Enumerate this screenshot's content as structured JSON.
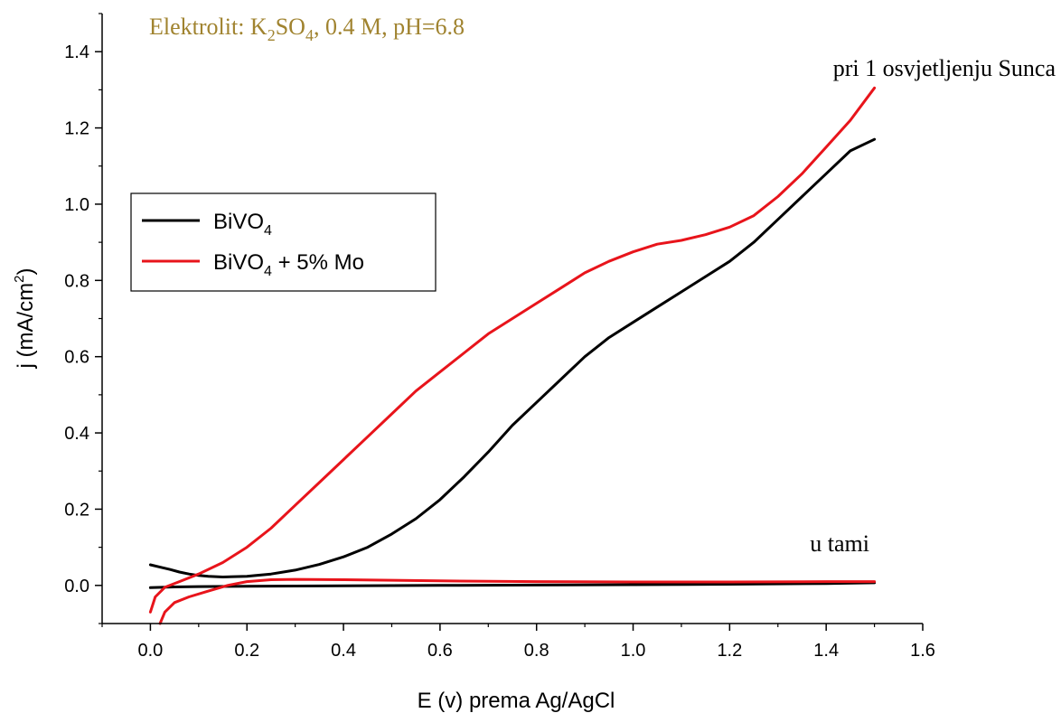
{
  "chart_data": {
    "type": "line",
    "title": "",
    "xlabel": "E (v) prema Ag/AgCl",
    "ylabel_parts": {
      "main": "j (mA/cm",
      "sup": "2",
      "close": ")"
    },
    "xlim": [
      -0.1,
      1.6
    ],
    "ylim": [
      -0.1,
      1.5
    ],
    "x_ticks": [
      0.0,
      0.2,
      0.4,
      0.6,
      0.8,
      1.0,
      1.2,
      1.4,
      1.6
    ],
    "x_tick_labels": [
      "0.0",
      "0.2",
      "0.4",
      "0.6",
      "0.8",
      "1.0",
      "1.2",
      "1.4",
      "1.6"
    ],
    "y_ticks": [
      0.0,
      0.2,
      0.4,
      0.6,
      0.8,
      1.0,
      1.2,
      1.4
    ],
    "y_tick_labels": [
      "0.0",
      "0.2",
      "0.4",
      "0.6",
      "0.8",
      "1.0",
      "1.2",
      "1.4"
    ],
    "grid": false,
    "legend_position": "upper-left",
    "annotations": {
      "electrolyte": {
        "prefix": "Elektrolit: K",
        "sub1": "2",
        "mid": "SO",
        "sub2": "4",
        "suffix": ", 0.4 M, pH=6.8"
      },
      "light": "pri 1 osvjetljenju Sunca",
      "dark": "u tami"
    },
    "series": [
      {
        "name_main": "BiVO",
        "name_sub": "4",
        "name_suffix": "",
        "color": "#000000",
        "light": {
          "x": [
            0.0,
            0.02,
            0.04,
            0.06,
            0.08,
            0.1,
            0.12,
            0.15,
            0.2,
            0.25,
            0.3,
            0.35,
            0.4,
            0.45,
            0.5,
            0.55,
            0.6,
            0.65,
            0.7,
            0.75,
            0.8,
            0.85,
            0.9,
            0.95,
            1.0,
            1.05,
            1.1,
            1.15,
            1.2,
            1.25,
            1.3,
            1.35,
            1.4,
            1.45,
            1.5
          ],
          "y": [
            0.054,
            0.048,
            0.042,
            0.035,
            0.03,
            0.026,
            0.024,
            0.022,
            0.024,
            0.03,
            0.04,
            0.055,
            0.075,
            0.1,
            0.135,
            0.175,
            0.225,
            0.285,
            0.35,
            0.42,
            0.48,
            0.54,
            0.6,
            0.65,
            0.69,
            0.73,
            0.77,
            0.81,
            0.85,
            0.9,
            0.96,
            1.02,
            1.08,
            1.14,
            1.17
          ]
        },
        "dark": {
          "x": [
            0.0,
            0.05,
            0.1,
            0.2,
            0.4,
            0.6,
            0.8,
            1.0,
            1.2,
            1.4,
            1.5
          ],
          "y": [
            -0.006,
            -0.004,
            -0.003,
            -0.002,
            -0.001,
            0.0,
            0.001,
            0.002,
            0.003,
            0.005,
            0.007
          ]
        }
      },
      {
        "name_main": "BiVO",
        "name_sub": "4",
        "name_suffix": " + 5% Mo",
        "color": "#e8141b",
        "light": {
          "x": [
            0.0,
            0.01,
            0.03,
            0.06,
            0.1,
            0.15,
            0.2,
            0.25,
            0.3,
            0.35,
            0.4,
            0.45,
            0.5,
            0.55,
            0.6,
            0.65,
            0.7,
            0.75,
            0.8,
            0.85,
            0.9,
            0.95,
            1.0,
            1.05,
            1.1,
            1.15,
            1.2,
            1.25,
            1.3,
            1.35,
            1.4,
            1.45,
            1.5
          ],
          "y": [
            -0.07,
            -0.03,
            -0.005,
            0.01,
            0.03,
            0.06,
            0.1,
            0.15,
            0.21,
            0.27,
            0.33,
            0.39,
            0.45,
            0.51,
            0.56,
            0.61,
            0.66,
            0.7,
            0.74,
            0.78,
            0.82,
            0.85,
            0.875,
            0.895,
            0.905,
            0.92,
            0.94,
            0.97,
            1.02,
            1.08,
            1.15,
            1.22,
            1.305
          ]
        },
        "dark": {
          "x": [
            0.02,
            0.03,
            0.05,
            0.08,
            0.12,
            0.16,
            0.2,
            0.25,
            0.3,
            0.4,
            0.6,
            0.8,
            1.0,
            1.2,
            1.4,
            1.5
          ],
          "y": [
            -0.1,
            -0.07,
            -0.045,
            -0.03,
            -0.015,
            0.0,
            0.01,
            0.015,
            0.016,
            0.015,
            0.012,
            0.01,
            0.009,
            0.009,
            0.01,
            0.01
          ]
        }
      }
    ]
  }
}
